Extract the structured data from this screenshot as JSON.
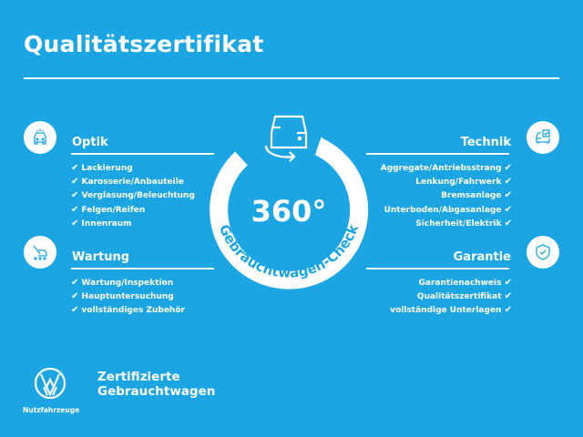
{
  "title": "Qualitätszertifikat",
  "colors": {
    "background": "#1ba5e2",
    "foreground": "#ffffff"
  },
  "badge": {
    "number": "360°",
    "arc_text": "Gebrauchtwagen-Check",
    "icon": "car-rotate-icon"
  },
  "check_glyph": "✔",
  "sections": {
    "optik": {
      "heading": "Optik",
      "icon": "car-inspection-icon",
      "items": [
        "Lackierung",
        "Karosserie/Anbauteile",
        "Verglasung/Beleuchtung",
        "Felgen/Reifen",
        "Innenraum"
      ]
    },
    "wartung": {
      "heading": "Wartung",
      "icon": "maintenance-tools-icon",
      "items": [
        "Wartung/Inspektion",
        "Hauptuntersuchung",
        "vollständiges Zubehör"
      ]
    },
    "technik": {
      "heading": "Technik",
      "icon": "car-checklist-icon",
      "items": [
        "Aggregate/Antriebsstrang",
        "Lenkung/Fahrwerk",
        "Bremsanlage",
        "Unterboden/Abgasanlage",
        "Sicherheit/Elektrik"
      ]
    },
    "garantie": {
      "heading": "Garantie",
      "icon": "shield-check-icon",
      "items": [
        "Garantienachweis",
        "Qualitätszertifikat",
        "vollständige Unterlagen"
      ]
    }
  },
  "footer": {
    "logo_caption": "Nutzfahrzeuge",
    "line1": "Zertifizierte",
    "line2": "Gebrauchtwagen"
  }
}
